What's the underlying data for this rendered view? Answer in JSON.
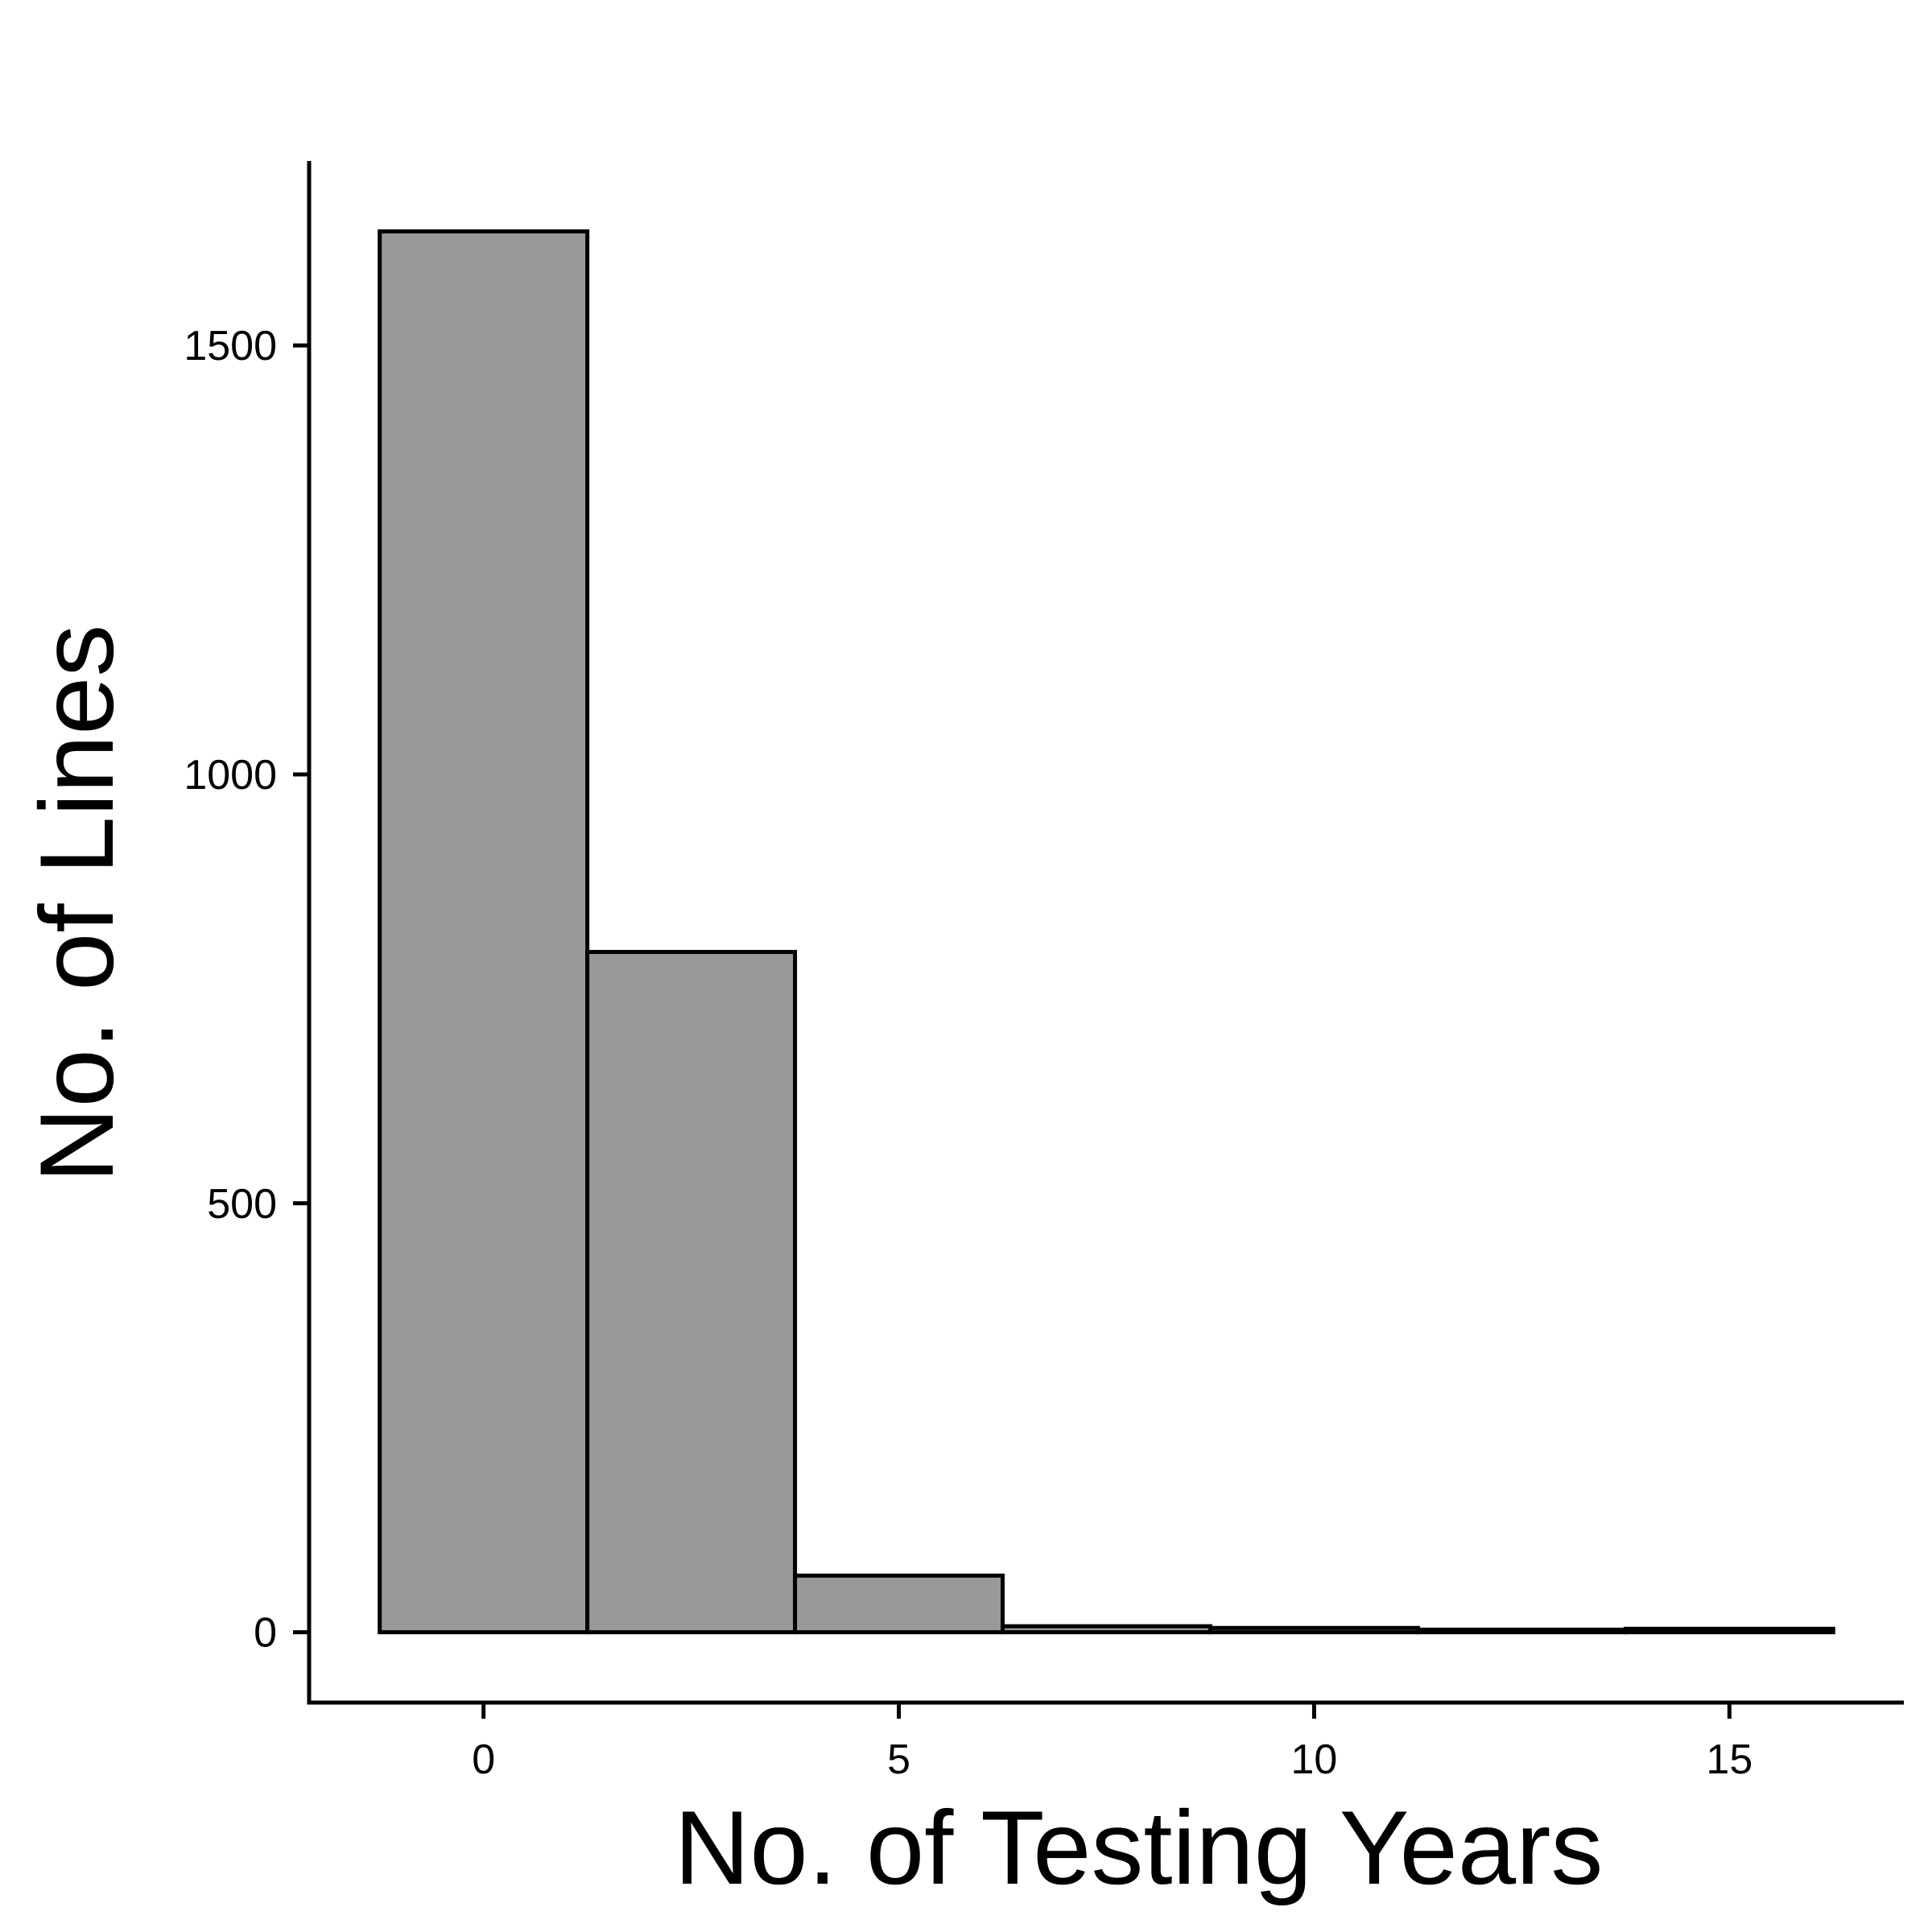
{
  "chart_data": {
    "type": "bar",
    "title": "",
    "xlabel": "No. of Testing Years",
    "ylabel": "No. of Lines",
    "bin_width": 2.5,
    "bins": [
      {
        "x_start": -1.25,
        "x_end": 1.25,
        "count": 1633
      },
      {
        "x_start": 1.25,
        "x_end": 3.75,
        "count": 793
      },
      {
        "x_start": 3.75,
        "x_end": 6.25,
        "count": 66
      },
      {
        "x_start": 6.25,
        "x_end": 8.75,
        "count": 7
      },
      {
        "x_start": 8.75,
        "x_end": 11.25,
        "count": 5
      },
      {
        "x_start": 11.25,
        "x_end": 13.75,
        "count": 3
      },
      {
        "x_start": 13.75,
        "x_end": 16.25,
        "count": 4
      }
    ],
    "xlim": [
      -2.1,
      17.1
    ],
    "ylim": [
      -82,
      1715
    ],
    "xticks": [
      0,
      5,
      10,
      15
    ],
    "xtick_labels": [
      "0",
      "5",
      "10",
      "15"
    ],
    "yticks": [
      0,
      500,
      1000,
      1500
    ],
    "ytick_labels": [
      "0",
      "500",
      "1000",
      "1500"
    ],
    "bar_fill": "#999999",
    "bar_stroke": "#000000",
    "grid": false,
    "legend": "none"
  }
}
